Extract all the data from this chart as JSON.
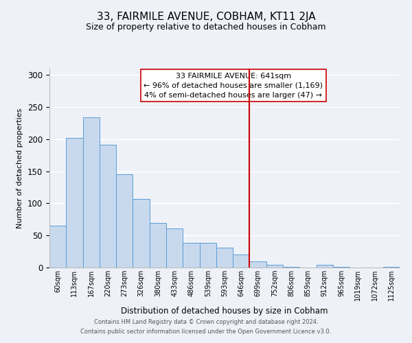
{
  "title": "33, FAIRMILE AVENUE, COBHAM, KT11 2JA",
  "subtitle": "Size of property relative to detached houses in Cobham",
  "xlabel": "Distribution of detached houses by size in Cobham",
  "ylabel": "Number of detached properties",
  "bar_labels": [
    "60sqm",
    "113sqm",
    "167sqm",
    "220sqm",
    "273sqm",
    "326sqm",
    "380sqm",
    "433sqm",
    "486sqm",
    "539sqm",
    "593sqm",
    "646sqm",
    "699sqm",
    "752sqm",
    "806sqm",
    "859sqm",
    "912sqm",
    "965sqm",
    "1019sqm",
    "1072sqm",
    "1125sqm"
  ],
  "bar_values": [
    65,
    202,
    234,
    191,
    145,
    107,
    69,
    61,
    39,
    38,
    31,
    20,
    10,
    4,
    1,
    0,
    4,
    1,
    0,
    0,
    1
  ],
  "bar_color": "#c8d9ee",
  "bar_edge_color": "#5b9bd5",
  "vline_x": 11.5,
  "vline_color": "#cc0000",
  "ylim": [
    0,
    310
  ],
  "yticks": [
    0,
    50,
    100,
    150,
    200,
    250,
    300
  ],
  "annotation_title": "33 FAIRMILE AVENUE: 641sqm",
  "annotation_line1": "← 96% of detached houses are smaller (1,169)",
  "annotation_line2": "4% of semi-detached houses are larger (47) →",
  "footer_line1": "Contains HM Land Registry data © Crown copyright and database right 2024.",
  "footer_line2": "Contains public sector information licensed under the Open Government Licence v3.0.",
  "background_color": "#eef2f8",
  "plot_background": "#eef2f8"
}
